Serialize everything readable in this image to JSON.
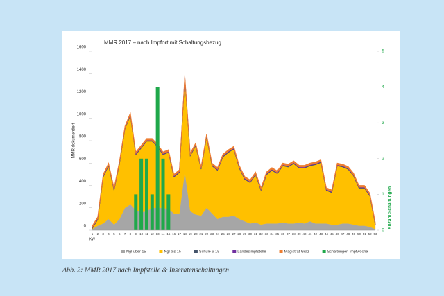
{
  "chart_data": {
    "type": "stacked_area",
    "title": "MMR 2017 – nach Impfort mit Schaltungsbezug",
    "caption": "Abb. 2: MMR 2017 nach Impfstelle & Inseratenschaltungen",
    "y_label": "MMR dokumentiert",
    "y2_label": "Anzahl Schaltungen",
    "x_label": "KW",
    "categories": [
      1,
      2,
      3,
      4,
      5,
      6,
      7,
      8,
      9,
      10,
      11,
      12,
      13,
      14,
      15,
      16,
      17,
      18,
      19,
      20,
      21,
      22,
      23,
      24,
      25,
      26,
      27,
      28,
      29,
      30,
      31,
      32,
      33,
      34,
      35,
      36,
      37,
      38,
      39,
      40,
      41,
      42,
      43,
      44,
      45,
      46,
      47,
      48,
      49,
      50,
      51,
      52,
      53
    ],
    "series": [
      {
        "name": "Ngl über 15",
        "color": "#a6a6a6",
        "values": [
          10,
          40,
          60,
          100,
          50,
          100,
          200,
          230,
          180,
          160,
          170,
          200,
          200,
          200,
          190,
          150,
          150,
          520,
          170,
          140,
          130,
          200,
          150,
          100,
          120,
          120,
          130,
          100,
          80,
          60,
          70,
          50,
          60,
          60,
          60,
          70,
          60,
          60,
          70,
          60,
          80,
          60,
          60,
          60,
          50,
          50,
          60,
          60,
          50,
          40,
          40,
          30,
          10
        ]
      },
      {
        "name": "Ngl bis 15",
        "color": "#ffc000",
        "values": [
          5,
          55,
          415,
          475,
          305,
          495,
          705,
          795,
          495,
          575,
          625,
          595,
          545,
          475,
          505,
          325,
          365,
          845,
          495,
          615,
          415,
          635,
          425,
          435,
          535,
          575,
          595,
          455,
          375,
          365,
          425,
          305,
          435,
          475,
          445,
          505,
          505,
          535,
          485,
          495,
          495,
          525,
          545,
          295,
          285,
          525,
          505,
          485,
          435,
          335,
          335,
          275,
          35
        ]
      },
      {
        "name": "Schule 6-15",
        "color": "#44546a",
        "values": [
          5,
          5,
          5,
          5,
          5,
          5,
          5,
          5,
          5,
          5,
          5,
          5,
          5,
          5,
          5,
          5,
          5,
          5,
          5,
          5,
          5,
          5,
          5,
          5,
          5,
          5,
          5,
          5,
          5,
          5,
          5,
          5,
          5,
          5,
          5,
          5,
          5,
          5,
          5,
          5,
          5,
          5,
          5,
          5,
          5,
          5,
          5,
          5,
          5,
          5,
          5,
          5,
          5
        ]
      },
      {
        "name": "Landesimpfstelle",
        "color": "#7030a0",
        "values": [
          5,
          5,
          5,
          5,
          5,
          5,
          5,
          5,
          5,
          5,
          5,
          5,
          5,
          5,
          5,
          5,
          5,
          5,
          5,
          5,
          5,
          5,
          5,
          5,
          5,
          5,
          5,
          5,
          5,
          5,
          5,
          5,
          5,
          5,
          5,
          5,
          5,
          5,
          5,
          5,
          5,
          5,
          5,
          5,
          5,
          5,
          5,
          5,
          5,
          5,
          5,
          5,
          5
        ]
      },
      {
        "name": "Magistrat Graz",
        "color": "#ed7d31",
        "values": [
          15,
          15,
          15,
          15,
          15,
          15,
          15,
          15,
          15,
          15,
          15,
          15,
          15,
          15,
          15,
          15,
          15,
          15,
          15,
          15,
          15,
          15,
          15,
          15,
          15,
          15,
          15,
          15,
          15,
          15,
          15,
          15,
          15,
          15,
          15,
          15,
          15,
          15,
          15,
          15,
          15,
          15,
          15,
          15,
          15,
          15,
          15,
          15,
          15,
          15,
          15,
          15,
          15
        ]
      },
      {
        "name": "Schaltungen Impfwoche",
        "color": "#1fa84a",
        "type": "bar",
        "axis": "y2",
        "values": [
          null,
          null,
          null,
          null,
          null,
          null,
          null,
          null,
          1,
          2,
          2,
          1,
          4,
          2,
          1,
          null,
          null,
          null,
          null,
          null,
          null,
          null,
          null,
          null,
          null,
          null,
          null,
          null,
          null,
          null,
          null,
          null,
          null,
          null,
          null,
          null,
          null,
          null,
          null,
          null,
          null,
          null,
          null,
          null,
          null,
          null,
          null,
          null,
          null,
          null,
          null,
          null,
          null
        ]
      }
    ],
    "ylim": [
      0,
      1600
    ],
    "yticks": [
      0,
      200,
      400,
      600,
      800,
      1000,
      1200,
      1400,
      1600
    ],
    "y2lim": [
      0,
      5
    ],
    "y2ticks": [
      0,
      1,
      2,
      3,
      4,
      5
    ]
  }
}
